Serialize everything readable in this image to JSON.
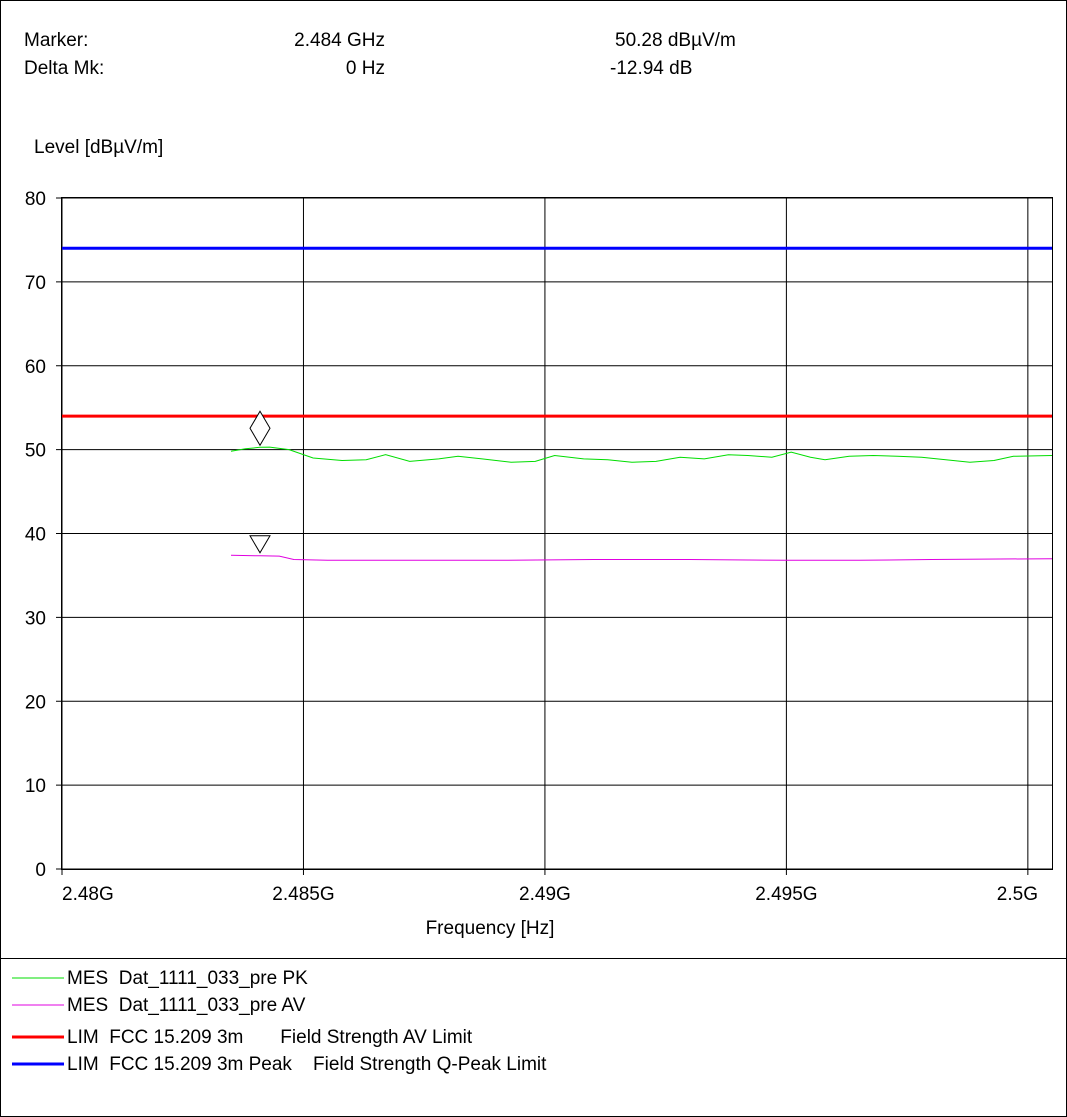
{
  "header": {
    "marker_label": "Marker:",
    "marker_freq": "2.484 GHz",
    "marker_level": "50.28 dBµV/m",
    "delta_label": "Delta Mk:",
    "delta_freq": "0 Hz",
    "delta_level": "-12.94 dB"
  },
  "chart_data": {
    "type": "line",
    "ylabel": "Level [dBµV/m]",
    "xlabel": "Frequency [Hz]",
    "xlim": [
      2.48,
      2.5005
    ],
    "ylim": [
      0,
      80
    ],
    "x_ticks": [
      {
        "value": 2.48,
        "label": "2.48G"
      },
      {
        "value": 2.485,
        "label": "2.485G"
      },
      {
        "value": 2.49,
        "label": "2.49G"
      },
      {
        "value": 2.495,
        "label": "2.495G"
      },
      {
        "value": 2.5,
        "label": "2.5G"
      }
    ],
    "y_ticks": [
      0,
      10,
      20,
      30,
      40,
      50,
      60,
      70,
      80
    ],
    "grid": true,
    "series": [
      {
        "name": "MES  Dat_1111_033_pre PK",
        "color": "#00dd00",
        "width": 1,
        "x": [
          2.4835,
          2.4838,
          2.4841,
          2.4843,
          2.4847,
          2.4852,
          2.4858,
          2.4863,
          2.4867,
          2.4872,
          2.4878,
          2.4882,
          2.4887,
          2.4893,
          2.4898,
          2.4902,
          2.4908,
          2.4913,
          2.4918,
          2.4923,
          2.4928,
          2.4933,
          2.4938,
          2.4942,
          2.4947,
          2.4951,
          2.4955,
          2.4958,
          2.4963,
          2.4968,
          2.4973,
          2.4978,
          2.4983,
          2.4988,
          2.4993,
          2.4997,
          2.5005
        ],
        "y": [
          49.8,
          50.1,
          50.28,
          50.3,
          50.0,
          49.0,
          48.7,
          48.8,
          49.4,
          48.6,
          48.9,
          49.2,
          48.9,
          48.5,
          48.6,
          49.3,
          48.9,
          48.8,
          48.5,
          48.6,
          49.1,
          48.9,
          49.4,
          49.3,
          49.1,
          49.7,
          49.1,
          48.8,
          49.2,
          49.3,
          49.2,
          49.1,
          48.8,
          48.5,
          48.7,
          49.2,
          49.3
        ]
      },
      {
        "name": "MES  Dat_1111_033_pre AV",
        "color": "#e000e0",
        "width": 1,
        "x": [
          2.4835,
          2.4841,
          2.4845,
          2.4848,
          2.4855,
          2.487,
          2.489,
          2.491,
          2.493,
          2.495,
          2.4965,
          2.498,
          2.5005
        ],
        "y": [
          37.4,
          37.34,
          37.3,
          36.9,
          36.8,
          36.8,
          36.8,
          36.9,
          36.9,
          36.8,
          36.8,
          36.9,
          37.0
        ]
      },
      {
        "name": "LIM  FCC 15.209 3m       Field Strength AV Limit",
        "color": "#ff0000",
        "width": 3,
        "x": [
          2.48,
          2.5005
        ],
        "y": [
          54,
          54
        ]
      },
      {
        "name": "LIM  FCC 15.209 3m Peak    Field Strength Q-Peak Limit",
        "color": "#0000ff",
        "width": 3,
        "x": [
          2.48,
          2.5005
        ],
        "y": [
          74,
          74
        ]
      }
    ],
    "markers": [
      {
        "shape": "diamond",
        "x": 2.4841,
        "y": 50.28
      },
      {
        "shape": "triangle-down",
        "x": 2.4841,
        "y": 37.34
      }
    ]
  }
}
